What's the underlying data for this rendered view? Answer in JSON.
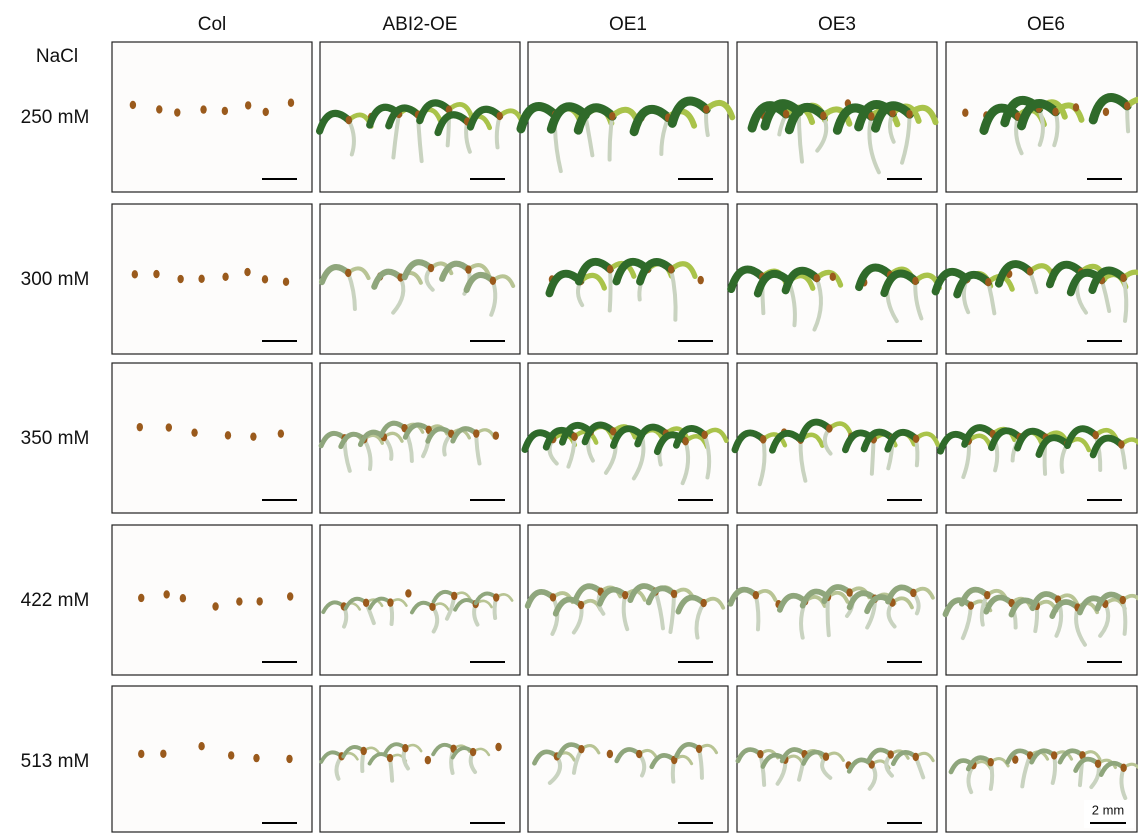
{
  "header": {
    "row_title": "NaCl",
    "columns": [
      "Col",
      "ABI2-OE",
      "OE1",
      "OE3",
      "OE6"
    ]
  },
  "rows": [
    "250 mM",
    "300 mM",
    "350 mM",
    "422 mM",
    "513 mM"
  ],
  "scale_bar": "2 mm"
}
